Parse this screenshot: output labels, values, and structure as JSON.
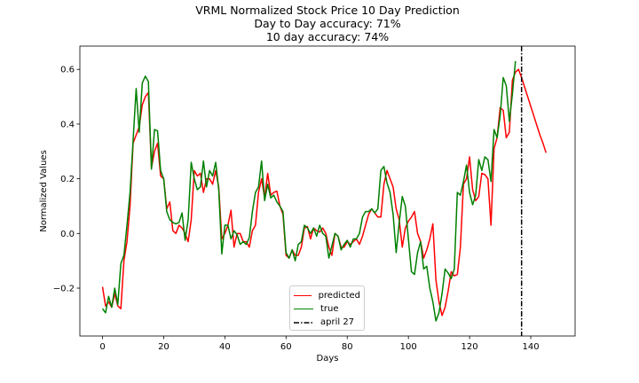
{
  "chart_data": {
    "type": "line",
    "title": "VRML Normalized Stock Price 10 Day Prediction",
    "subtitle_lines": [
      "Day to Day accuracy: 71%",
      "10 day accuracy: 74%"
    ],
    "xlabel": "Days",
    "ylabel": "Normalized Values",
    "xlim": [
      -7.4,
      154.5
    ],
    "ylim": [
      -0.375,
      0.685
    ],
    "xticks": [
      0,
      20,
      40,
      60,
      80,
      100,
      120,
      140
    ],
    "yticks": [
      -0.2,
      0.0,
      0.2,
      0.4,
      0.6
    ],
    "ytick_labels": [
      "−0.2",
      "0.0",
      "0.2",
      "0.4",
      "0.6"
    ],
    "grid": false,
    "legend_position": "lower-center",
    "series": [
      {
        "name": "predicted",
        "color": "#ff0000",
        "x_start": 0,
        "values": [
          -0.195,
          -0.265,
          -0.25,
          -0.27,
          -0.22,
          -0.265,
          -0.275,
          -0.1,
          -0.03,
          0.1,
          0.33,
          0.36,
          0.39,
          0.47,
          0.5,
          0.515,
          0.24,
          0.3,
          0.33,
          0.21,
          0.2,
          0.09,
          0.115,
          0.01,
          0.0,
          0.03,
          0.02,
          0.0,
          -0.03,
          0.05,
          0.23,
          0.21,
          0.22,
          0.15,
          0.2,
          0.2,
          0.18,
          0.23,
          0.17,
          -0.02,
          0.0,
          0.03,
          0.085,
          -0.05,
          0.0,
          0.0,
          -0.03,
          -0.03,
          -0.05,
          0.01,
          0.03,
          0.15,
          0.2,
          0.13,
          0.22,
          0.14,
          0.15,
          0.155,
          0.1,
          0.07,
          -0.08,
          -0.09,
          -0.06,
          -0.08,
          -0.08,
          -0.05,
          0.02,
          0.025,
          -0.02,
          0.02,
          0.01,
          0.005,
          0.02,
          0.0,
          -0.05,
          -0.08,
          0.0,
          -0.01,
          -0.05,
          -0.05,
          -0.03,
          -0.04,
          -0.03,
          -0.02,
          -0.04,
          -0.01,
          0.03,
          0.07,
          0.09,
          0.075,
          0.06,
          0.06,
          0.18,
          0.23,
          0.2,
          0.17,
          0.09,
          0.05,
          -0.05,
          0.02,
          0.045,
          0.06,
          0.08,
          0.0,
          -0.03,
          -0.09,
          -0.06,
          -0.02,
          0.035,
          -0.17,
          -0.25,
          -0.3,
          -0.27,
          -0.21,
          -0.14,
          -0.155,
          -0.15,
          -0.05,
          0.18,
          0.2,
          0.28,
          0.16,
          0.12,
          0.135,
          0.22,
          0.215,
          0.2,
          0.03,
          0.31,
          0.35,
          0.46,
          0.45,
          0.35,
          0.37,
          0.56,
          0.59,
          0.6,
          0.57,
          0.535,
          0.5,
          0.465,
          0.43,
          0.395,
          0.36,
          0.33,
          0.295
        ]
      },
      {
        "name": "true",
        "color": "#008000",
        "x_start": 0,
        "values": [
          -0.275,
          -0.29,
          -0.23,
          -0.27,
          -0.2,
          -0.26,
          -0.11,
          -0.08,
          0.03,
          0.15,
          0.34,
          0.53,
          0.37,
          0.55,
          0.575,
          0.555,
          0.235,
          0.38,
          0.375,
          0.23,
          0.2,
          0.08,
          0.05,
          0.04,
          0.035,
          0.04,
          0.075,
          -0.025,
          0.05,
          0.26,
          0.2,
          0.16,
          0.17,
          0.265,
          0.17,
          0.23,
          0.21,
          0.26,
          0.16,
          -0.075,
          0.03,
          0.03,
          -0.02,
          0.01,
          -0.005,
          -0.04,
          -0.03,
          -0.04,
          -0.015,
          0.08,
          0.15,
          0.17,
          0.265,
          0.12,
          0.18,
          0.13,
          0.14,
          0.115,
          0.1,
          0.08,
          -0.07,
          -0.09,
          -0.06,
          -0.1,
          -0.04,
          -0.03,
          0.03,
          0.02,
          0.0,
          0.02,
          -0.01,
          0.03,
          0.0,
          -0.01,
          -0.09,
          -0.045,
          0.0,
          -0.01,
          -0.06,
          -0.04,
          -0.025,
          -0.05,
          -0.02,
          -0.02,
          0.0,
          0.06,
          0.08,
          0.08,
          0.09,
          0.075,
          0.09,
          0.23,
          0.245,
          0.185,
          0.15,
          0.07,
          -0.07,
          0.04,
          0.135,
          0.1,
          -0.02,
          -0.14,
          -0.15,
          -0.07,
          -0.03,
          -0.13,
          -0.12,
          -0.2,
          -0.25,
          -0.32,
          -0.29,
          -0.22,
          -0.13,
          -0.145,
          -0.165,
          -0.13,
          0.15,
          0.14,
          0.19,
          0.25,
          0.15,
          0.105,
          0.14,
          0.27,
          0.23,
          0.28,
          0.27,
          0.19,
          0.38,
          0.35,
          0.43,
          0.57,
          0.54,
          0.41,
          0.51,
          0.63
        ]
      }
    ],
    "vertical_line": {
      "name": "april 27",
      "x": 137,
      "color": "#000000",
      "style": "dash-dot"
    }
  }
}
